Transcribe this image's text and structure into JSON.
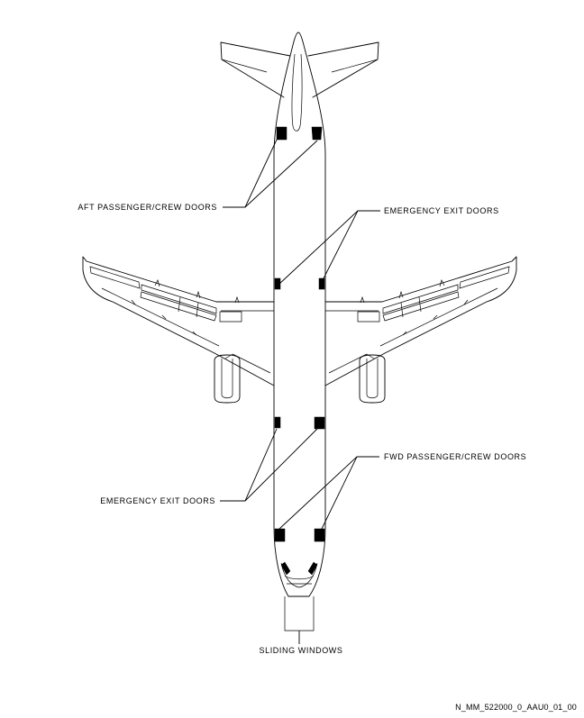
{
  "labels": {
    "aft_doors": "AFT PASSENGER/CREW DOORS",
    "emergency_exit_upper": "EMERGENCY EXIT DOORS",
    "emergency_exit_lower": "EMERGENCY EXIT DOORS",
    "fwd_doors": "FWD PASSENGER/CREW DOORS",
    "sliding_windows": "SLIDING WINDOWS"
  },
  "drawing_id": "N_MM_522000_0_AAU0_01_00"
}
